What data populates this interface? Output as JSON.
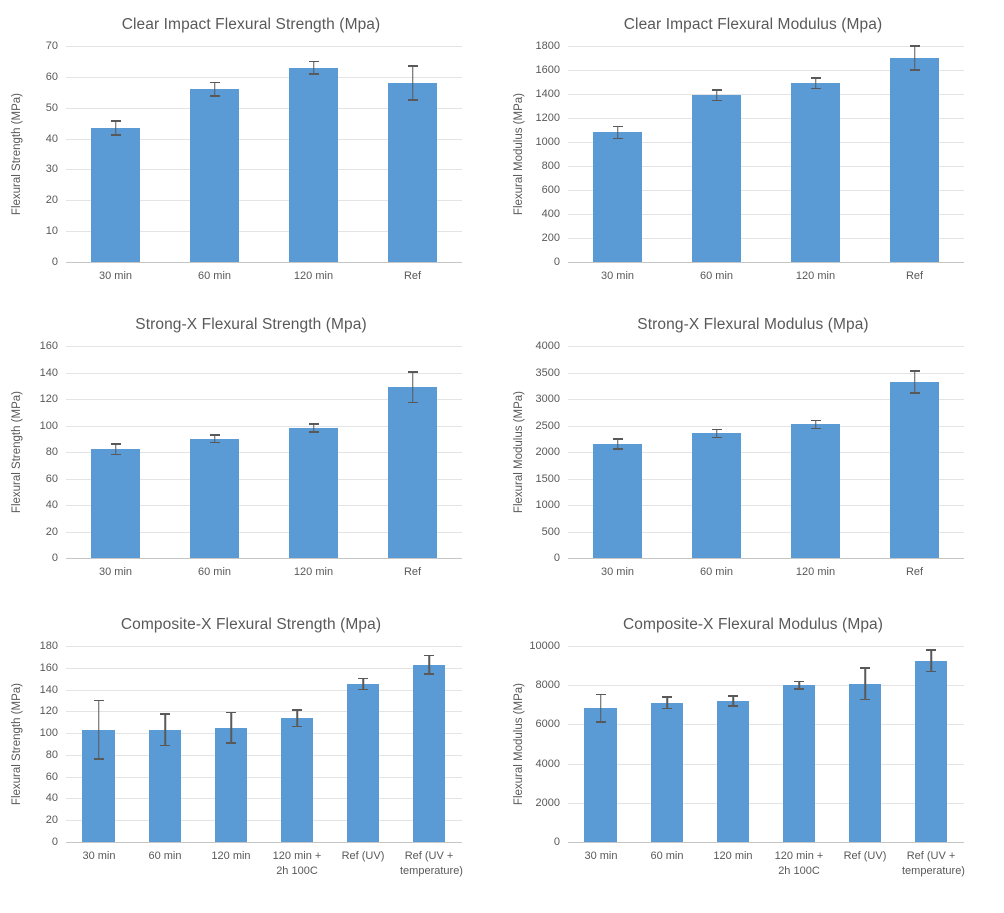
{
  "styles": {
    "bar_color": "#5b9bd5",
    "error_color": "#595959",
    "grid_color": "#e4e4e4",
    "axis_line_color": "#c6c6c6",
    "text_color": "#595959",
    "background": "#ffffff"
  },
  "chart_data": [
    {
      "type": "bar",
      "title": "Clear Impact Flexural Strength (Mpa)",
      "ylabel": "Flexural Strength (MPa)",
      "xlabel": "",
      "categories": [
        "30 min",
        "60 min",
        "120 min",
        "Ref"
      ],
      "values": [
        43.4,
        56,
        63,
        58
      ],
      "errors": [
        2.3,
        2.2,
        2,
        5.5
      ],
      "ylim": [
        0,
        70
      ],
      "ytick_step": 10,
      "grid": true,
      "legend": false
    },
    {
      "type": "bar",
      "title": "Clear Impact Flexural Modulus (Mpa)",
      "ylabel": "Flexural Modulus (MPa)",
      "xlabel": "",
      "categories": [
        "30 min",
        "60 min",
        "120 min",
        "Ref"
      ],
      "values": [
        1080,
        1390,
        1490,
        1700
      ],
      "errors": [
        50,
        45,
        45,
        100
      ],
      "ylim": [
        0,
        1800
      ],
      "ytick_step": 200,
      "grid": true,
      "legend": false
    },
    {
      "type": "bar",
      "title": "Strong-X Flexural Strength (Mpa)",
      "ylabel": "Flexural Strength (MPa)",
      "xlabel": "",
      "categories": [
        "30 min",
        "60 min",
        "120 min",
        "Ref"
      ],
      "values": [
        82,
        90,
        98,
        129
      ],
      "errors": [
        4,
        3,
        3,
        11.5
      ],
      "ylim": [
        0,
        160
      ],
      "ytick_step": 20,
      "grid": true,
      "legend": false
    },
    {
      "type": "bar",
      "title": "Strong-X Flexural Modulus (Mpa)",
      "ylabel": "Flexural Modulus (MPa)",
      "xlabel": "",
      "categories": [
        "30 min",
        "60 min",
        "120 min",
        "Ref"
      ],
      "values": [
        2150,
        2350,
        2520,
        3320
      ],
      "errors": [
        95,
        75,
        75,
        210
      ],
      "ylim": [
        0,
        4000
      ],
      "ytick_step": 500,
      "grid": true,
      "legend": false
    },
    {
      "type": "bar",
      "title": "Composite-X Flexural Strength (Mpa)",
      "ylabel": "Flexural Strength (MPa)",
      "xlabel": "",
      "categories": [
        "30 min",
        "60 min",
        "120 min",
        "120 min + 2h 100C",
        "Ref (UV)",
        "Ref (UV + temperature)"
      ],
      "values": [
        103,
        103,
        105,
        113.5,
        145,
        163
      ],
      "errors": [
        27,
        14.5,
        14,
        7.5,
        5,
        8.5
      ],
      "ylim": [
        0,
        180
      ],
      "ytick_step": 20,
      "grid": true,
      "legend": false
    },
    {
      "type": "bar",
      "title": "Composite-X Flexural Modulus (Mpa)",
      "ylabel": "Flexural Modulus (MPa)",
      "xlabel": "",
      "categories": [
        "30 min",
        "60 min",
        "120 min",
        "120 min + 2h 100C",
        "Ref (UV)",
        "Ref (UV + temperature)"
      ],
      "values": [
        6820,
        7100,
        7200,
        8000,
        8070,
        9250
      ],
      "errors": [
        700,
        300,
        250,
        200,
        800,
        550
      ],
      "ylim": [
        0,
        10000
      ],
      "ytick_step": 2000,
      "grid": true,
      "legend": false
    }
  ]
}
